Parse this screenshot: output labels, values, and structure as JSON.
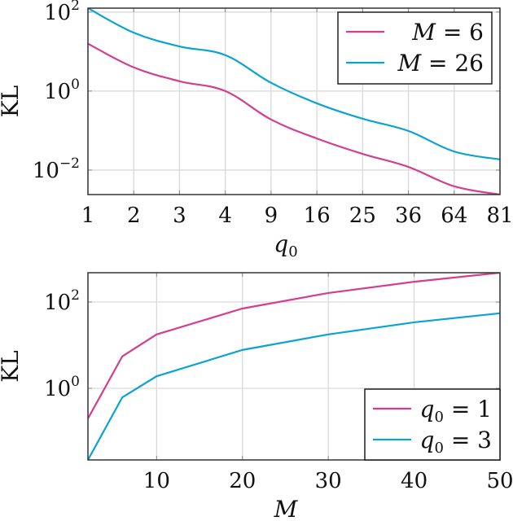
{
  "colors": {
    "series1": "#D33F8E",
    "series2": "#0AA3D3",
    "grid": "#d9d9d9",
    "axis": "#333333"
  },
  "chart_data": [
    {
      "type": "line",
      "title": "",
      "xlabel": "q0",
      "ylabel": "KL",
      "yscale": "log",
      "ylim_log10": [
        -2.62,
        2.1
      ],
      "grid": true,
      "legend_position": "upper right",
      "categories": [
        "1",
        "2",
        "3",
        "4",
        "9",
        "16",
        "25",
        "36",
        "64",
        "81"
      ],
      "y_ticks": [
        {
          "exp": "2",
          "log": 2
        },
        {
          "exp": "0",
          "log": 0
        },
        {
          "exp": "−2",
          "log": -2
        }
      ],
      "series": [
        {
          "name": "M = 6",
          "legend_var": "M",
          "legend_val": "6",
          "color": "#D33F8E",
          "log10_values": [
            1.2,
            0.6,
            0.25,
            0.0,
            -0.72,
            -1.2,
            -1.59,
            -1.92,
            -2.41,
            -2.62
          ],
          "values": [
            15.8,
            3.98,
            1.78,
            1.0,
            0.19,
            0.063,
            0.026,
            0.012,
            0.0039,
            0.0024
          ]
        },
        {
          "name": "M = 26",
          "legend_var": "M",
          "legend_val": "26",
          "color": "#0AA3D3",
          "log10_values": [
            2.1,
            1.48,
            1.13,
            0.91,
            0.21,
            -0.31,
            -0.7,
            -1.01,
            -1.53,
            -1.73
          ],
          "values": [
            126,
            30.2,
            13.5,
            8.1,
            1.62,
            0.49,
            0.2,
            0.098,
            0.03,
            0.019
          ]
        }
      ]
    },
    {
      "type": "line",
      "title": "",
      "xlabel": "M",
      "ylabel": "KL",
      "yscale": "log",
      "xlim": [
        2,
        50
      ],
      "ylim_log10": [
        -1.66,
        2.68
      ],
      "grid": true,
      "legend_position": "lower right",
      "x_ticks": [
        10,
        20,
        30,
        40,
        50
      ],
      "y_ticks": [
        {
          "exp": "2",
          "log": 2
        },
        {
          "exp": "0",
          "log": 0
        }
      ],
      "x": [
        2,
        6,
        10,
        20,
        30,
        40,
        50
      ],
      "series": [
        {
          "name": "q0 = 1",
          "legend_var": "q",
          "legend_sub": "0",
          "legend_val": "1",
          "color": "#D33F8E",
          "log10_values": [
            -0.7,
            0.74,
            1.25,
            1.85,
            2.21,
            2.47,
            2.68
          ],
          "values": [
            0.2,
            5.5,
            17.8,
            70.8,
            162,
            295,
            479
          ]
        },
        {
          "name": "q0 = 3",
          "legend_var": "q",
          "legend_sub": "0",
          "legend_val": "3",
          "color": "#0AA3D3",
          "log10_values": [
            -1.66,
            -0.21,
            0.28,
            0.89,
            1.25,
            1.53,
            1.74
          ],
          "values": [
            0.022,
            0.62,
            1.9,
            7.8,
            17.8,
            33.9,
            55
          ]
        }
      ]
    }
  ]
}
